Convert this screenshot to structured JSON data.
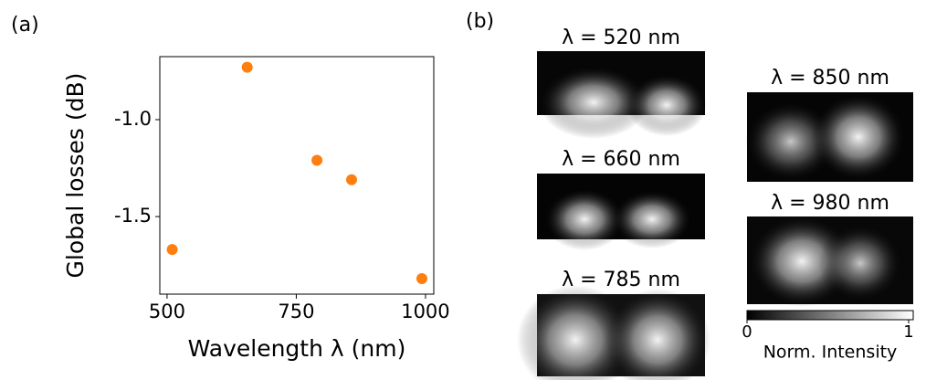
{
  "panels": [
    "(a)",
    "(b)"
  ],
  "chart_data": {
    "type": "scatter",
    "xlabel": "Wavelength λ (nm)",
    "ylabel": "Global losses (dB)",
    "x": [
      510,
      655,
      790,
      857,
      993
    ],
    "values": [
      -1.67,
      -0.73,
      -1.21,
      -1.31,
      -1.82
    ],
    "color": "#ff7f0e",
    "xlim": [
      486,
      1016
    ],
    "ylim": [
      -1.9,
      -0.675
    ],
    "xticks": [
      500,
      750,
      1000
    ],
    "yticks": [
      {
        "value": -1.5,
        "label": "-1.5"
      },
      {
        "value": -1.0,
        "label": "-1.0"
      }
    ]
  },
  "images": [
    {
      "label": "λ = 520 nm"
    },
    {
      "label": "λ = 660 nm"
    },
    {
      "label": "λ = 785 nm"
    },
    {
      "label": "λ = 850 nm"
    },
    {
      "label": "λ = 980 nm"
    }
  ],
  "colorbar": {
    "label": "Norm. Intensity",
    "lim": [
      0,
      1
    ],
    "ticks": [
      0,
      1
    ]
  }
}
